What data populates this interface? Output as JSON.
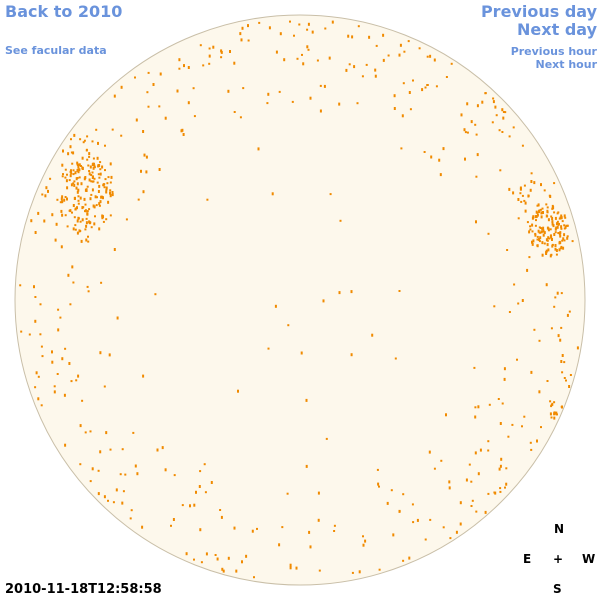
{
  "nav": {
    "back": "Back to 2010",
    "facular": "See facular data",
    "previous_day": "Previous day",
    "next_day": "Next day",
    "previous_hour": "Previous hour",
    "next_hour": "Next hour"
  },
  "timestamp": "2010-11-18T12:58:58",
  "compass": {
    "north": "N",
    "east": "E",
    "center": "+",
    "west": "W",
    "south": "S"
  }
}
